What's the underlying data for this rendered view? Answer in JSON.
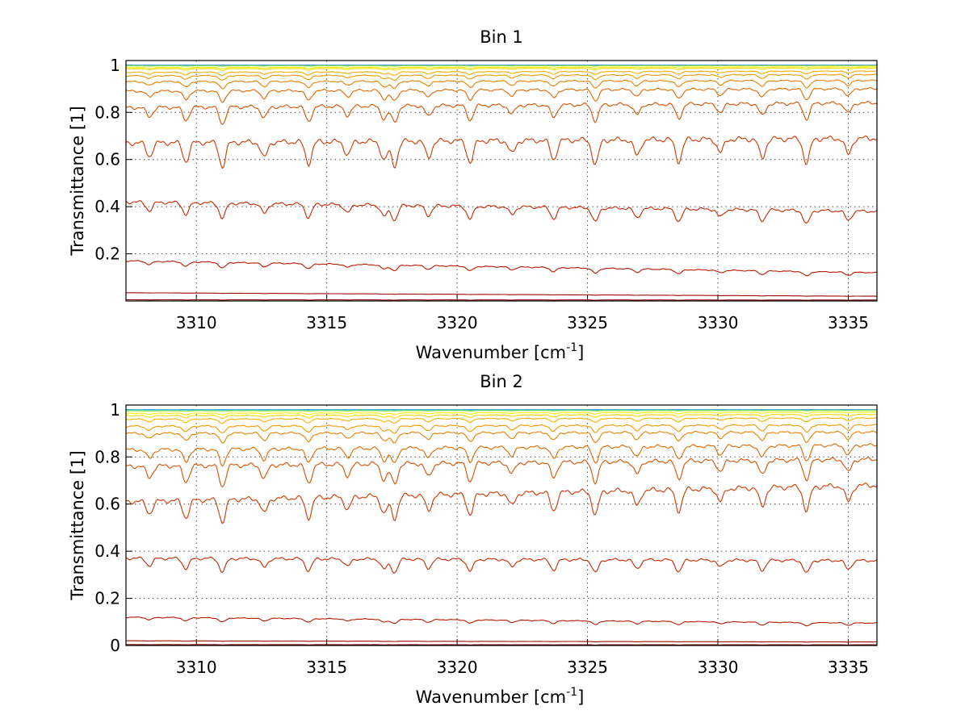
{
  "chart_data": [
    {
      "type": "line",
      "title": "Bin 1",
      "xlabel": "Wavenumber [cm",
      "xlabel_sup": "-1",
      "xlabel_end": "]",
      "ylabel": "Transmittance [1]",
      "xlim": [
        3307.3,
        3336.1
      ],
      "ylim": [
        0.0,
        1.02
      ],
      "xticks": [
        3310,
        3315,
        3320,
        3325,
        3330,
        3335
      ],
      "xtick_labels": [
        "3310",
        "3315",
        "3320",
        "3325",
        "3330",
        "3335"
      ],
      "yticks": [
        0.2,
        0.4,
        0.6,
        0.8,
        1.0
      ],
      "ytick_labels": [
        "0.2",
        "0.4",
        "0.6",
        "0.8",
        "1"
      ],
      "grid": true,
      "series": [
        {
          "color": "#0a3cc8",
          "start": 1.0,
          "end": 1.0
        },
        {
          "color": "#18c8d8",
          "start": 0.999,
          "end": 0.999
        },
        {
          "color": "#a8e040",
          "start": 0.997,
          "end": 0.998
        },
        {
          "color": "#f0f000",
          "start": 0.99,
          "end": 0.993
        },
        {
          "color": "#f8d800",
          "start": 0.985,
          "end": 0.988
        },
        {
          "color": "#f8b000",
          "start": 0.97,
          "end": 0.975
        },
        {
          "color": "#f09800",
          "start": 0.955,
          "end": 0.96
        },
        {
          "color": "#e88000",
          "start": 0.93,
          "end": 0.935
        },
        {
          "color": "#e06800",
          "start": 0.89,
          "end": 0.9
        },
        {
          "color": "#d85000",
          "start": 0.82,
          "end": 0.84
        },
        {
          "color": "#d03800",
          "start": 0.67,
          "end": 0.69
        },
        {
          "color": "#c82800",
          "start": 0.42,
          "end": 0.38
        },
        {
          "color": "#b81800",
          "start": 0.17,
          "end": 0.12
        },
        {
          "color": "#a00800",
          "start": 0.035,
          "end": 0.02
        },
        {
          "color": "#800000",
          "start": 0.005,
          "end": 0.004
        }
      ]
    },
    {
      "type": "line",
      "title": "Bin 2",
      "xlabel": "Wavenumber [cm",
      "xlabel_sup": "-1",
      "xlabel_end": "]",
      "ylabel": "Transmittance [1]",
      "xlim": [
        3307.3,
        3336.1
      ],
      "ylim": [
        0.0,
        1.02
      ],
      "xticks": [
        3310,
        3315,
        3320,
        3325,
        3330,
        3335
      ],
      "xtick_labels": [
        "3310",
        "3315",
        "3320",
        "3325",
        "3330",
        "3335"
      ],
      "yticks": [
        0.0,
        0.2,
        0.4,
        0.6,
        0.8,
        1.0
      ],
      "ytick_labels": [
        "0",
        "0.2",
        "0.4",
        "0.6",
        "0.8",
        "1"
      ],
      "grid": true,
      "series": [
        {
          "color": "#0a3cc8",
          "start": 1.0,
          "end": 1.0
        },
        {
          "color": "#18c8d8",
          "start": 0.999,
          "end": 0.999
        },
        {
          "color": "#a8e040",
          "start": 0.995,
          "end": 0.997
        },
        {
          "color": "#f0f000",
          "start": 0.985,
          "end": 0.99
        },
        {
          "color": "#f8d800",
          "start": 0.975,
          "end": 0.98
        },
        {
          "color": "#f8b000",
          "start": 0.96,
          "end": 0.965
        },
        {
          "color": "#f09800",
          "start": 0.93,
          "end": 0.935
        },
        {
          "color": "#e88000",
          "start": 0.9,
          "end": 0.905
        },
        {
          "color": "#e06800",
          "start": 0.83,
          "end": 0.85
        },
        {
          "color": "#d85000",
          "start": 0.76,
          "end": 0.79
        },
        {
          "color": "#d03800",
          "start": 0.61,
          "end": 0.68
        },
        {
          "color": "#c82800",
          "start": 0.37,
          "end": 0.36
        },
        {
          "color": "#b81800",
          "start": 0.12,
          "end": 0.095
        },
        {
          "color": "#a00800",
          "start": 0.02,
          "end": 0.015
        },
        {
          "color": "#800000",
          "start": 0.004,
          "end": 0.003
        }
      ]
    }
  ]
}
